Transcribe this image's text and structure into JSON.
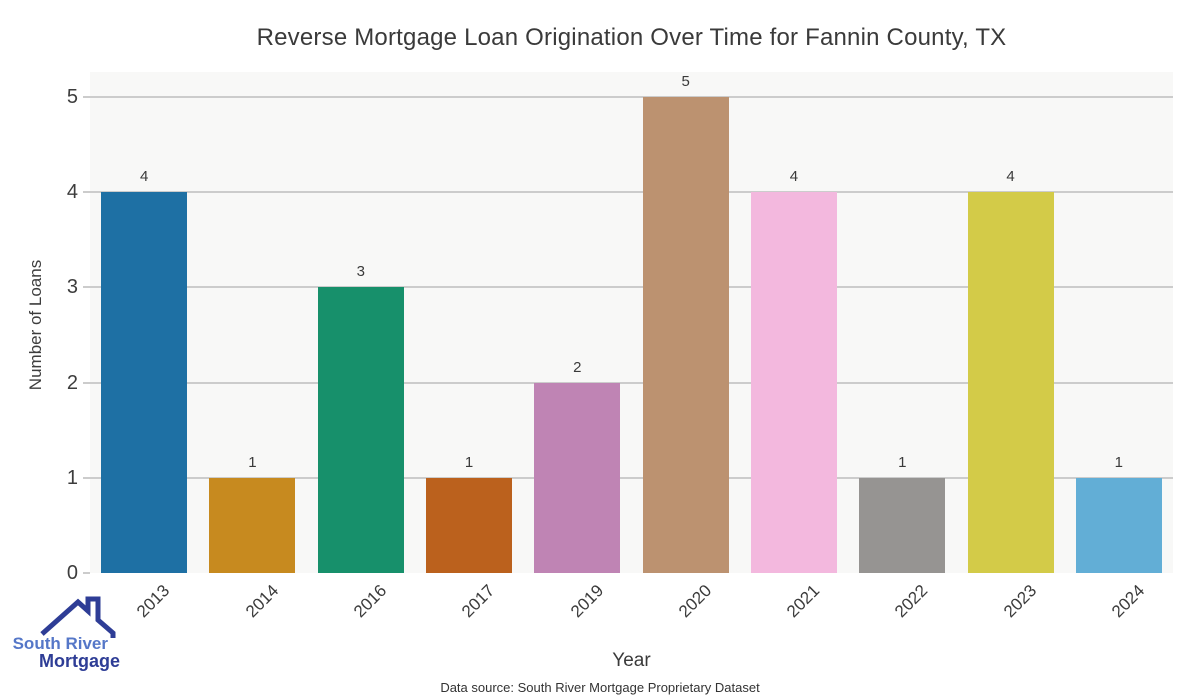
{
  "chart_data": {
    "type": "bar",
    "title": "Reverse Mortgage Loan Origination Over Time for Fannin County, TX",
    "xlabel": "Year",
    "ylabel": "Number of Loans",
    "categories": [
      "2013",
      "2014",
      "2016",
      "2017",
      "2019",
      "2020",
      "2021",
      "2022",
      "2023",
      "2024"
    ],
    "values": [
      4,
      1,
      3,
      1,
      2,
      5,
      4,
      1,
      4,
      1
    ],
    "bar_colors": [
      "#1e70a4",
      "#c78a1f",
      "#17906b",
      "#bb611d",
      "#bf84b4",
      "#bc9270",
      "#f3b8de",
      "#969492",
      "#d3cb48",
      "#62aed6"
    ],
    "ylim": [
      0,
      5
    ],
    "yticks": [
      0,
      1,
      2,
      3,
      4,
      5
    ],
    "grid": true,
    "legend": "none",
    "plot_bg": "#f8f8f7",
    "grid_color": "#cccccc"
  },
  "footer": {
    "data_source": "Data source: South River Mortgage Proprietary Dataset"
  },
  "logo": {
    "line1": "South River",
    "line2": "Mortgage",
    "line1_color": "#5577c8",
    "line2_color": "#2e3d96",
    "house_color": "#2e3d96"
  }
}
